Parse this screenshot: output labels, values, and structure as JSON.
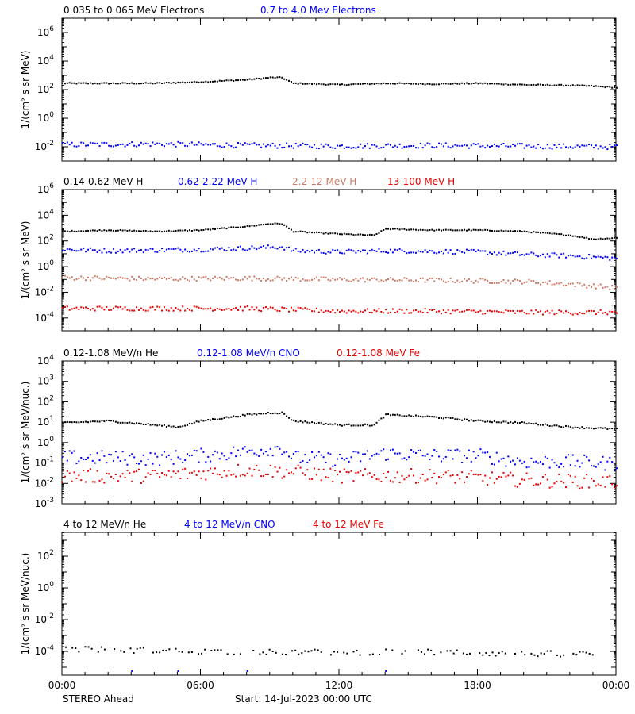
{
  "footer": {
    "spacecraft": "STEREO Ahead",
    "start": "Start: 14-Jul-2023 00:00 UTC"
  },
  "x_axis": {
    "range_hours": [
      0,
      24
    ],
    "ticks": [
      0,
      6,
      12,
      18,
      24
    ],
    "tick_labels": [
      "00:00",
      "06:00",
      "12:00",
      "18:00",
      "00:00"
    ]
  },
  "colors": {
    "black": "#000000",
    "blue": "#0000ff",
    "tan": "#c87864",
    "red": "#e80000"
  },
  "chart_data": [
    {
      "type": "scatter",
      "ylabel": "1/(cm² s sr MeV)",
      "yscale": "log",
      "ylim_exp": [
        -3,
        7
      ],
      "tick_exps": [
        -2,
        0,
        2,
        4,
        6
      ],
      "grid": false,
      "legend_placement": "top-left",
      "series": [
        {
          "name": "0.035 to 0.065 MeV Electrons",
          "color": "#000000",
          "x": [
            0,
            2,
            4,
            6,
            8,
            9,
            9.5,
            10,
            12,
            14,
            16,
            18,
            20,
            22,
            23,
            24
          ],
          "log10_y": [
            2.5,
            2.5,
            2.5,
            2.6,
            2.75,
            2.9,
            2.9,
            2.5,
            2.4,
            2.5,
            2.45,
            2.5,
            2.4,
            2.35,
            2.3,
            2.2
          ]
        },
        {
          "name": "0.7 to 4.0 Mev Electrons",
          "color": "#0000ff",
          "x": [
            0,
            4,
            8,
            12,
            16,
            20,
            24
          ],
          "log10_y": [
            -1.8,
            -1.75,
            -1.85,
            -1.9,
            -1.85,
            -1.9,
            -1.95
          ]
        }
      ]
    },
    {
      "type": "scatter",
      "ylabel": "1/(cm² s sr MeV)",
      "yscale": "log",
      "ylim_exp": [
        -5,
        6
      ],
      "tick_exps": [
        -4,
        -2,
        0,
        2,
        4,
        6
      ],
      "grid": false,
      "legend_placement": "top-left",
      "series": [
        {
          "name": "0.14-0.62 MeV H",
          "color": "#000000",
          "x": [
            0,
            2,
            4,
            6,
            8,
            9,
            9.5,
            10,
            12,
            13.5,
            14,
            16,
            18,
            20,
            22,
            23,
            24
          ],
          "log10_y": [
            2.8,
            2.9,
            2.8,
            2.9,
            3.2,
            3.4,
            3.4,
            2.8,
            2.6,
            2.5,
            3.0,
            2.9,
            2.9,
            2.8,
            2.5,
            2.2,
            2.3
          ]
        },
        {
          "name": "0.62-2.22 MeV H",
          "color": "#0000ff",
          "x": [
            0,
            2,
            4,
            6,
            8,
            9.5,
            10,
            12,
            14,
            16,
            18,
            20,
            22,
            24
          ],
          "log10_y": [
            1.4,
            1.3,
            1.35,
            1.4,
            1.5,
            1.6,
            1.3,
            1.2,
            1.3,
            1.25,
            1.2,
            1.0,
            0.9,
            0.7
          ]
        },
        {
          "name": "2.2-12 MeV H",
          "color": "#c87864",
          "x": [
            0,
            4,
            8,
            10,
            12,
            16,
            20,
            22,
            24
          ],
          "log10_y": [
            -0.8,
            -0.9,
            -0.85,
            -0.9,
            -0.95,
            -1.0,
            -1.1,
            -1.3,
            -1.6
          ]
        },
        {
          "name": "13-100 MeV H",
          "color": "#e80000",
          "x": [
            0,
            4,
            8,
            12,
            16,
            20,
            24
          ],
          "log10_y": [
            -3.2,
            -3.2,
            -3.2,
            -3.4,
            -3.4,
            -3.5,
            -3.5
          ]
        }
      ]
    },
    {
      "type": "scatter",
      "ylabel": "1/(cm² s sr MeV/nuc.)",
      "yscale": "log",
      "ylim_exp": [
        -3,
        4
      ],
      "tick_exps": [
        -3,
        -2,
        -1,
        0,
        1,
        2,
        3,
        4
      ],
      "grid": false,
      "legend_placement": "top-left",
      "series": [
        {
          "name": "0.12-1.08 MeV/n He",
          "color": "#000000",
          "x": [
            0,
            2,
            4,
            5,
            6,
            8,
            9,
            9.5,
            10,
            12,
            13.5,
            14,
            16,
            18,
            20,
            22,
            24
          ],
          "log10_y": [
            1.0,
            1.1,
            0.9,
            0.8,
            1.1,
            1.4,
            1.5,
            1.5,
            1.1,
            0.9,
            0.9,
            1.4,
            1.3,
            1.1,
            1.0,
            0.8,
            0.7
          ]
        },
        {
          "name": "0.12-1.08 MeV/n CNO",
          "color": "#0000ff",
          "x": [
            0,
            2,
            4,
            6,
            8,
            9.5,
            10,
            12,
            14,
            16,
            18,
            20,
            22,
            24
          ],
          "log10_y": [
            -0.7,
            -0.7,
            -0.75,
            -0.6,
            -0.4,
            -0.2,
            -0.7,
            -0.8,
            -0.5,
            -0.6,
            -0.6,
            -0.9,
            -0.9,
            -1.0
          ]
        },
        {
          "name": "0.12-1.08 MeV Fe",
          "color": "#e80000",
          "x": [
            0,
            4,
            8,
            10,
            12,
            16,
            20,
            24
          ],
          "log10_y": [
            -1.6,
            -1.6,
            -1.3,
            -1.4,
            -1.6,
            -1.6,
            -1.8,
            -1.9
          ]
        }
      ]
    },
    {
      "type": "scatter",
      "ylabel": "1/(cm² s sr MeV/nuc.)",
      "yscale": "log",
      "ylim_exp": [
        -5.5,
        3.5
      ],
      "tick_exps": [
        -4,
        -2,
        0,
        2
      ],
      "grid": false,
      "legend_placement": "top-left",
      "series": [
        {
          "name": "4 to 12 MeV/n He",
          "color": "#000000",
          "x": [
            0,
            4,
            8,
            12,
            16,
            20,
            23
          ],
          "log10_y": [
            -3.8,
            -3.9,
            -4.0,
            -4.0,
            -4.0,
            -4.1,
            -4.1
          ]
        },
        {
          "name": "4 to 12 MeV/n CNO",
          "color": "#0000ff",
          "x": [
            3,
            5,
            8,
            14
          ],
          "log10_y": [
            -5.2,
            -5.2,
            -5.2,
            -5.2
          ]
        },
        {
          "name": "4 to 12 MeV Fe",
          "color": "#e80000",
          "x": [],
          "log10_y": []
        }
      ]
    }
  ]
}
